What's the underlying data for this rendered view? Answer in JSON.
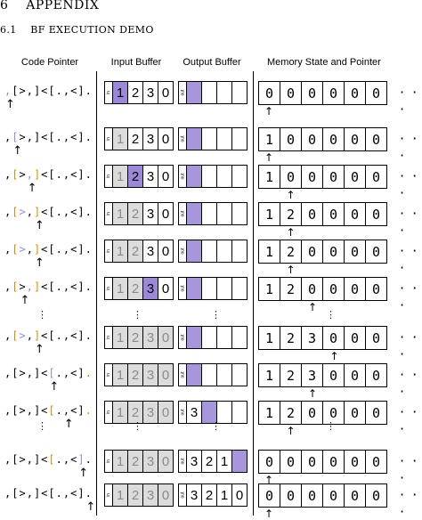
{
  "section": {
    "number": "6",
    "title": "APPENDIX"
  },
  "subsection": {
    "number": "6.1",
    "title": "BF EXECUTION DEMO"
  },
  "headers": {
    "code": "Code Pointer",
    "input": "Input Buffer",
    "output": "Output Buffer",
    "memory": "Memory State and Pointer"
  },
  "input_label": "in",
  "output_label": "out",
  "memory_ellipsis": "· · ·",
  "vertical_ellipsis": "⋮",
  "pointer_arrow": "↑",
  "colors": {
    "bracket_orange": "#d89000",
    "highlight_purple": "#9b88d6",
    "cell_consumed": "#dcdcdc",
    "text_gray": "#8a8a8a"
  },
  "steps": [
    {
      "code": ",[>,]<[.,<].",
      "code_pointer": 0,
      "colored": {
        "0": "purple"
      },
      "input": [
        "1",
        "2",
        "3",
        "0"
      ],
      "input_consumed": 0,
      "input_active": 0,
      "output": [
        "",
        "",
        "",
        ""
      ],
      "output_active": 0,
      "memory": [
        "0",
        "0",
        "0",
        "0",
        "0",
        "0"
      ],
      "memory_pointer": 0
    },
    {
      "code": ",[>,]<[.,<].",
      "code_pointer": 1,
      "colored": {
        "1": "purple"
      },
      "input": [
        "1",
        "2",
        "3",
        "0"
      ],
      "input_consumed": 1,
      "input_active": -1,
      "output": [
        "",
        "",
        "",
        ""
      ],
      "output_active": 0,
      "memory": [
        "1",
        "0",
        "0",
        "0",
        "0",
        "0"
      ],
      "memory_pointer": 0
    },
    {
      "code": ",[>,]<[.,<].",
      "code_pointer": 3,
      "colored": {
        "1": "orange",
        "3": "purple",
        "4": "orange"
      },
      "input": [
        "1",
        "2",
        "3",
        "0"
      ],
      "input_consumed": 1,
      "input_active": 1,
      "output": [
        "",
        "",
        "",
        ""
      ],
      "output_active": 0,
      "memory": [
        "1",
        "0",
        "0",
        "0",
        "0",
        "0"
      ],
      "memory_pointer": 1
    },
    {
      "code": ",[>,]<[.,<].",
      "code_pointer": 4,
      "colored": {
        "1": "orange",
        "2": "purple",
        "4": "orange"
      },
      "input": [
        "1",
        "2",
        "3",
        "0"
      ],
      "input_consumed": 2,
      "input_active": -1,
      "output": [
        "",
        "",
        "",
        ""
      ],
      "output_active": 0,
      "memory": [
        "1",
        "2",
        "0",
        "0",
        "0",
        "0"
      ],
      "memory_pointer": 1
    },
    {
      "code": ",[>,]<[.,<].",
      "code_pointer": 4,
      "colored": {
        "1": "orange",
        "2": "purple",
        "4": "orange"
      },
      "input": [
        "1",
        "2",
        "3",
        "0"
      ],
      "input_consumed": 2,
      "input_active": -1,
      "output": [
        "",
        "",
        "",
        ""
      ],
      "output_active": 0,
      "memory": [
        "1",
        "2",
        "0",
        "0",
        "0",
        "0"
      ],
      "memory_pointer": 1
    },
    {
      "code": ",[>,]<[.,<].",
      "code_pointer": 2,
      "colored": {
        "1": "orange",
        "3": "purple",
        "4": "orange"
      },
      "input": [
        "1",
        "2",
        "3",
        "0"
      ],
      "input_consumed": 2,
      "input_active": 2,
      "output": [
        "",
        "",
        "",
        ""
      ],
      "output_active": 0,
      "memory": [
        "1",
        "2",
        "0",
        "0",
        "0",
        "0"
      ],
      "memory_pointer": 2
    },
    {
      "code": ",[>,]<[.,<].",
      "code_pointer": 4,
      "colored": {
        "1": "orange",
        "2": "purple",
        "4": "orange"
      },
      "input": [
        "1",
        "2",
        "3",
        "0"
      ],
      "input_consumed": 4,
      "input_active": -1,
      "output": [
        "",
        "",
        "",
        ""
      ],
      "output_active": 0,
      "memory": [
        "1",
        "2",
        "3",
        "0",
        "0",
        "0"
      ],
      "memory_pointer": 3
    },
    {
      "code": ",[>,]<[.,<].",
      "code_pointer": 6,
      "colored": {
        "6": "purple",
        "11": "orange"
      },
      "input": [
        "1",
        "2",
        "3",
        "0"
      ],
      "input_consumed": 4,
      "input_active": -1,
      "output": [
        "",
        "",
        "",
        ""
      ],
      "output_active": 0,
      "memory": [
        "1",
        "2",
        "3",
        "0",
        "0",
        "0"
      ],
      "memory_pointer": 2
    },
    {
      "code": ",[>,]<[.,<].",
      "code_pointer": 8,
      "colored": {
        "6": "orange",
        "11": "orange"
      },
      "input": [
        "1",
        "2",
        "3",
        "0"
      ],
      "input_consumed": 4,
      "input_active": -1,
      "output": [
        "3",
        "",
        "",
        ""
      ],
      "output_active": 1,
      "memory": [
        "1",
        "2",
        "0",
        "0",
        "0",
        "0"
      ],
      "memory_pointer": 1
    },
    {
      "code": ",[>,]<[.,<].",
      "code_pointer": 10,
      "colored": {
        "6": "orange",
        "10": "purple"
      },
      "input": [
        "1",
        "2",
        "3",
        "0"
      ],
      "input_consumed": 4,
      "input_active": -1,
      "output": [
        "3",
        "2",
        "1",
        ""
      ],
      "output_active": 3,
      "memory": [
        "0",
        "0",
        "0",
        "0",
        "0",
        "0"
      ],
      "memory_pointer": 0
    },
    {
      "code": ",[>,]<[.,<].",
      "code_pointer": 11,
      "colored": {},
      "input": [
        "1",
        "2",
        "3",
        "0"
      ],
      "input_consumed": 4,
      "input_active": -1,
      "output": [
        "3",
        "2",
        "1",
        "0"
      ],
      "output_active": -1,
      "memory": [
        "0",
        "0",
        "0",
        "0",
        "0",
        "0"
      ],
      "memory_pointer": 0
    }
  ]
}
